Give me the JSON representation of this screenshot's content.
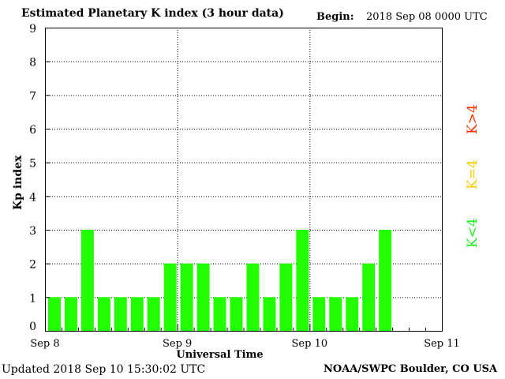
{
  "header": {
    "title": "Estimated Planetary K index (3 hour data)",
    "begin_label": "Begin:",
    "begin_value": "2018 Sep 08 0000 UTC"
  },
  "footer": {
    "updated": "Updated 2018 Sep 10 15:30:02 UTC",
    "credit": "NOAA/SWPC Boulder, CO USA"
  },
  "legend": [
    {
      "label": "K<4",
      "color": "#22ee22"
    },
    {
      "label": "K=4",
      "color": "#ffcc00"
    },
    {
      "label": "K>4",
      "color": "#ff3300"
    }
  ],
  "chart_data": {
    "type": "bar",
    "title": "Estimated Planetary K index (3 hour data)",
    "xlabel": "Universal Time",
    "ylabel": "Kp index",
    "ylim": [
      0,
      9
    ],
    "yticks": [
      "0",
      "1",
      "2",
      "3",
      "4",
      "5",
      "6",
      "7",
      "8",
      "9"
    ],
    "xticks": [
      "Sep 8",
      "Sep 9",
      "Sep 10",
      "Sep 11"
    ],
    "grid": true,
    "bar_color": "#22ff00",
    "values": [
      1,
      1,
      3,
      1,
      1,
      1,
      1,
      2,
      2,
      2,
      1,
      1,
      2,
      1,
      2,
      3,
      1,
      1,
      1,
      2,
      3
    ]
  }
}
